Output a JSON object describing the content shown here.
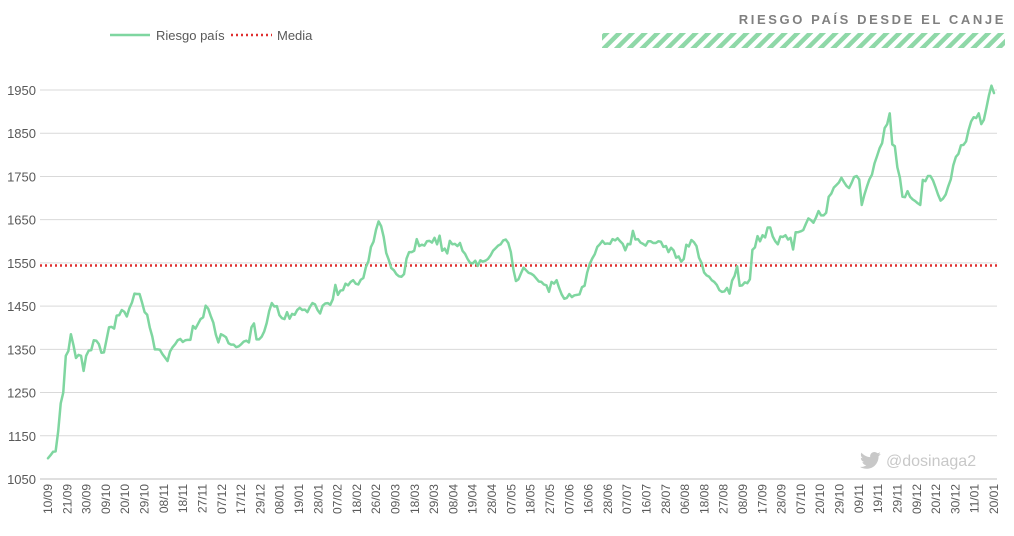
{
  "chart_data": {
    "type": "line",
    "title": "RIESGO PAÍS DESDE EL CANJE",
    "watermark": "@dosinaga2",
    "legend": [
      {
        "name": "Riesgo país",
        "style": "solid",
        "color": "#7fd6a0"
      },
      {
        "name": "Media",
        "style": "dotted",
        "color": "#e03030"
      }
    ],
    "legend_position": "top-left",
    "ylim": [
      1050,
      1950
    ],
    "yticks": [
      "1050",
      "1150",
      "1250",
      "1350",
      "1450",
      "1550",
      "1650",
      "1750",
      "1850",
      "1950"
    ],
    "xticks": [
      "10/09",
      "21/09",
      "30/09",
      "09/10",
      "20/10",
      "29/10",
      "08/11",
      "18/11",
      "27/11",
      "07/12",
      "17/12",
      "29/12",
      "08/01",
      "19/01",
      "28/01",
      "07/02",
      "18/02",
      "26/02",
      "09/03",
      "18/03",
      "29/03",
      "08/04",
      "19/04",
      "28/04",
      "07/05",
      "18/05",
      "27/05",
      "07/06",
      "16/06",
      "28/06",
      "07/07",
      "16/07",
      "28/07",
      "06/08",
      "18/08",
      "27/08",
      "08/09",
      "17/09",
      "28/09",
      "07/10",
      "20/10",
      "29/10",
      "09/11",
      "19/11",
      "29/11",
      "09/12",
      "20/12",
      "30/12",
      "11/01",
      "20/01"
    ],
    "grid": true,
    "media": 1544,
    "series": [
      {
        "name": "Riesgo país",
        "color": "#7fd6a0",
        "values": [
          1098,
          1105,
          1113,
          1114,
          1160,
          1225,
          1250,
          1335,
          1346,
          1385,
          1360,
          1330,
          1337,
          1335,
          1300,
          1335,
          1347,
          1348,
          1371,
          1370,
          1362,
          1342,
          1343,
          1372,
          1401,
          1402,
          1398,
          1428,
          1429,
          1441,
          1437,
          1426,
          1445,
          1458,
          1479,
          1478,
          1478,
          1458,
          1436,
          1430,
          1401,
          1380,
          1350,
          1350,
          1349,
          1339,
          1331,
          1323,
          1345,
          1355,
          1362,
          1371,
          1374,
          1367,
          1371,
          1372,
          1372,
          1404,
          1398,
          1409,
          1420,
          1424,
          1451,
          1444,
          1427,
          1412,
          1384,
          1366,
          1385,
          1382,
          1378,
          1364,
          1361,
          1361,
          1355,
          1357,
          1362,
          1368,
          1370,
          1366,
          1401,
          1410,
          1373,
          1373,
          1379,
          1391,
          1411,
          1439,
          1457,
          1449,
          1450,
          1429,
          1422,
          1420,
          1436,
          1421,
          1432,
          1430,
          1441,
          1446,
          1441,
          1442,
          1436,
          1448,
          1457,
          1454,
          1441,
          1433,
          1451,
          1456,
          1457,
          1453,
          1466,
          1499,
          1476,
          1486,
          1487,
          1502,
          1498,
          1506,
          1510,
          1502,
          1500,
          1511,
          1515,
          1540,
          1554,
          1587,
          1599,
          1627,
          1646,
          1635,
          1610,
          1573,
          1557,
          1538,
          1533,
          1524,
          1519,
          1518,
          1524,
          1560,
          1575,
          1575,
          1578,
          1605,
          1589,
          1592,
          1590,
          1600,
          1601,
          1597,
          1608,
          1593,
          1613,
          1578,
          1583,
          1572,
          1601,
          1593,
          1594,
          1589,
          1596,
          1578,
          1571,
          1559,
          1550,
          1549,
          1555,
          1543,
          1556,
          1553,
          1555,
          1559,
          1567,
          1578,
          1584,
          1590,
          1593,
          1602,
          1604,
          1596,
          1575,
          1535,
          1508,
          1512,
          1526,
          1539,
          1533,
          1527,
          1525,
          1521,
          1514,
          1507,
          1506,
          1500,
          1498,
          1483,
          1506,
          1502,
          1510,
          1492,
          1477,
          1467,
          1469,
          1478,
          1471,
          1475,
          1476,
          1477,
          1494,
          1497,
          1527,
          1547,
          1560,
          1570,
          1587,
          1593,
          1601,
          1594,
          1595,
          1594,
          1605,
          1602,
          1607,
          1600,
          1594,
          1579,
          1594,
          1593,
          1624,
          1604,
          1605,
          1597,
          1594,
          1590,
          1600,
          1600,
          1596,
          1596,
          1600,
          1599,
          1587,
          1589,
          1575,
          1585,
          1579,
          1562,
          1565,
          1553,
          1559,
          1592,
          1588,
          1603,
          1598,
          1589,
          1562,
          1550,
          1528,
          1521,
          1518,
          1510,
          1506,
          1499,
          1487,
          1483,
          1484,
          1492,
          1479,
          1509,
          1520,
          1542,
          1497,
          1498,
          1505,
          1503,
          1512,
          1580,
          1586,
          1612,
          1600,
          1614,
          1609,
          1632,
          1632,
          1611,
          1600,
          1593,
          1611,
          1610,
          1614,
          1604,
          1608,
          1581,
          1621,
          1621,
          1623,
          1626,
          1640,
          1653,
          1649,
          1643,
          1655,
          1670,
          1660,
          1660,
          1666,
          1703,
          1710,
          1724,
          1730,
          1736,
          1747,
          1737,
          1728,
          1723,
          1735,
          1749,
          1751,
          1743,
          1684,
          1707,
          1726,
          1743,
          1754,
          1780,
          1797,
          1815,
          1827,
          1862,
          1871,
          1896,
          1824,
          1820,
          1771,
          1747,
          1703,
          1702,
          1716,
          1703,
          1697,
          1693,
          1688,
          1684,
          1742,
          1739,
          1751,
          1751,
          1741,
          1725,
          1708,
          1694,
          1699,
          1708,
          1727,
          1743,
          1776,
          1795,
          1802,
          1822,
          1823,
          1831,
          1857,
          1877,
          1887,
          1885,
          1896,
          1871,
          1881,
          1908,
          1937,
          1960,
          1943
        ]
      }
    ]
  }
}
